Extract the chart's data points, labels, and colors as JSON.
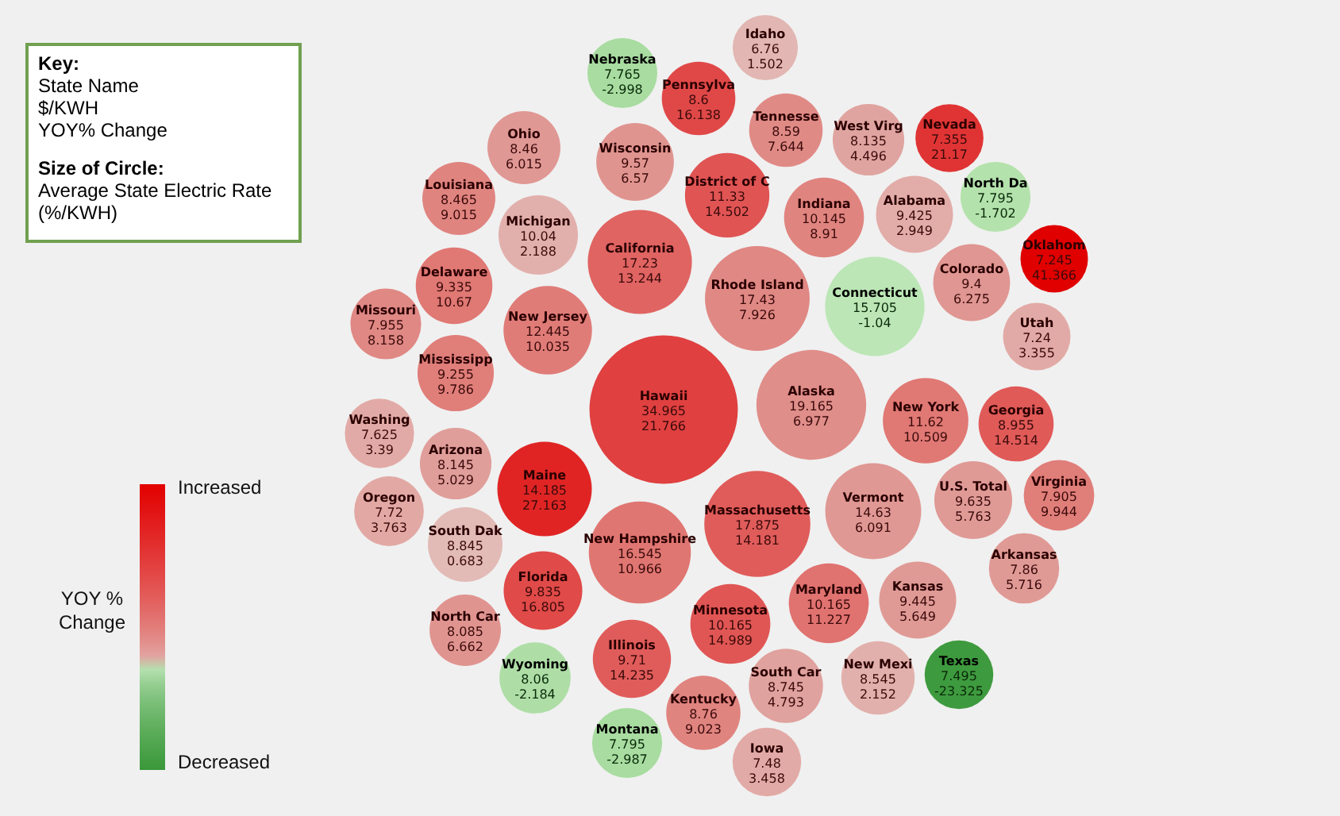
{
  "chart_data": {
    "type": "other",
    "clabel": "YOY % Change",
    "data_labels": true,
    "annotations": [
      "Key:",
      "State Name",
      "$/KWH",
      "YOY% Change",
      "Size of Circle:",
      "Average State Electric Rate (%/KWH)",
      "Increased",
      "Decreased"
    ],
    "categories": [
      "Nebraska",
      "Idaho",
      "Pennsylva",
      "Tennesse",
      "West Virg",
      "Nevada",
      "Ohio",
      "Wisconsin",
      "District of C",
      "Louisiana",
      "Michigan",
      "Indiana",
      "Alabama",
      "North Da",
      "California",
      "Rhode Island",
      "Connecticut",
      "Colorado",
      "Oklahom",
      "Delaware",
      "Missouri",
      "New Jersey",
      "Mississipp",
      "Utah",
      "Hawaii",
      "Alaska",
      "New York",
      "Georgia",
      "Washing",
      "Arizona",
      "Maine",
      "Oregon",
      "Massachusetts",
      "Vermont",
      "U.S. Total",
      "Virginia",
      "South Dak",
      "New Hampshire",
      "Arkansas",
      "Florida",
      "Kansas",
      "Maryland",
      "Minnesota",
      "North Car",
      "Illinois",
      "Wyoming",
      "South Car",
      "New Mexi",
      "Texas",
      "Kentucky",
      "Montana",
      "Iowa"
    ],
    "series": [
      {
        "colors": [
          "#a8dca0",
          "#e2b6b2",
          "#e04848",
          "#e08a86",
          "#e0a4a0",
          "#e03434",
          "#e09894",
          "#e09490",
          "#e05454",
          "#e08480",
          "#e2b0ac",
          "#e08480",
          "#e2aca8",
          "#b4e2ac",
          "#e06462",
          "#e08884",
          "#bce6b6",
          "#e09692",
          "#e00000",
          "#e07874",
          "#e08884",
          "#e07c78",
          "#e07e7a",
          "#e2aaa6",
          "#e04040",
          "#e08e8a",
          "#e07874",
          "#e05a58",
          "#e2aaa6",
          "#e09e9a",
          "#e02424",
          "#e2a8a4",
          "#e05c5a",
          "#e09894",
          "#e09a96",
          "#e07e7a",
          "#e2bab6",
          "#e07672",
          "#e09a96",
          "#e04a48",
          "#e09a96",
          "#e07270",
          "#e05654",
          "#e09490",
          "#e05c5a",
          "#aedea6",
          "#e0a29e",
          "#e2b0ac",
          "#3e9a3e",
          "#e08480",
          "#a8dca0",
          "#e2aaa6"
        ],
        "values": [
          7.765,
          6.76,
          8.6,
          8.59,
          8.135,
          7.355,
          8.46,
          9.57,
          11.33,
          8.465,
          10.04,
          10.145,
          9.425,
          7.795,
          17.23,
          17.43,
          15.705,
          9.4,
          7.245,
          9.335,
          7.955,
          12.445,
          9.255,
          7.24,
          34.965,
          19.165,
          11.62,
          8.955,
          7.625,
          8.145,
          14.185,
          7.72,
          17.875,
          14.63,
          9.635,
          7.905,
          8.845,
          16.545,
          7.86,
          9.835,
          9.445,
          10.165,
          10.165,
          8.085,
          9.71,
          8.06,
          8.745,
          8.545,
          7.495,
          8.76,
          7.795,
          7.48
        ]
      },
      {
        "values": [
          -2.998,
          1.502,
          16.138,
          7.644,
          4.496,
          21.17,
          6.015,
          6.57,
          14.502,
          9.015,
          2.188,
          8.91,
          2.949,
          -1.702,
          13.244,
          7.926,
          -1.04,
          6.275,
          41.366,
          10.67,
          8.158,
          10.035,
          9.786,
          3.355,
          21.766,
          6.977,
          10.509,
          14.514,
          3.39,
          5.029,
          27.163,
          3.763,
          14.181,
          6.091,
          5.763,
          9.944,
          0.683,
          10.966,
          5.716,
          16.805,
          5.649,
          11.227,
          14.989,
          6.662,
          14.235,
          -2.184,
          4.793,
          2.152,
          -23.325,
          9.023,
          -2.987,
          3.458
        ]
      }
    ]
  }
}
